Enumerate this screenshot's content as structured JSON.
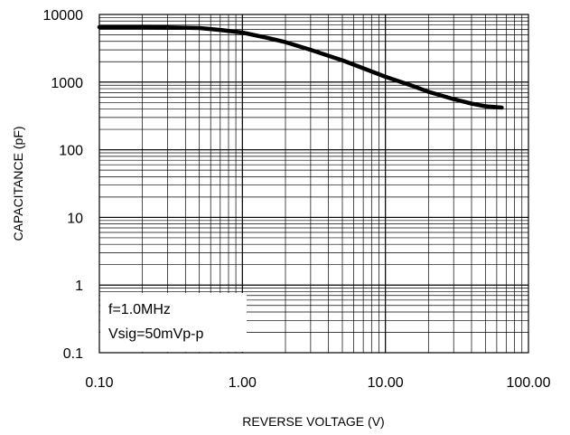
{
  "chart_data": {
    "type": "line",
    "title": "",
    "xlabel": "REVERSE VOLTAGE (V)",
    "ylabel": "CAPACITANCE (pF)",
    "x_scale": "log",
    "y_scale": "log",
    "xlim": [
      0.1,
      100
    ],
    "ylim": [
      0.1,
      10000
    ],
    "grid": true,
    "x_tick_labels": [
      "0.10",
      "1.00",
      "10.00",
      "100.00"
    ],
    "y_tick_labels": [
      "0.1",
      "1",
      "10",
      "100",
      "1000",
      "10000"
    ],
    "annotations": [
      "f=1.0MHz",
      "Vsig=50mVp-p"
    ],
    "series": [
      {
        "x": [
          0.1,
          0.2,
          0.3,
          0.5,
          0.7,
          1.0,
          1.5,
          2,
          3,
          5,
          7,
          10,
          15,
          20,
          30,
          40,
          50,
          65
        ],
        "y": [
          6500,
          6500,
          6450,
          6300,
          5900,
          5400,
          4500,
          3900,
          3000,
          2100,
          1600,
          1200,
          900,
          720,
          560,
          480,
          440,
          420
        ]
      }
    ]
  }
}
